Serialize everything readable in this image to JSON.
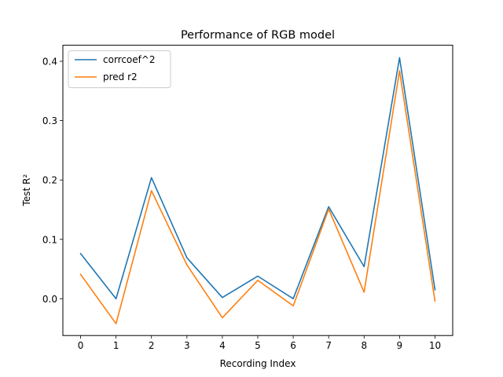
{
  "chart_data": {
    "type": "line",
    "title": "Performance of RGB model",
    "xlabel": "Recording Index",
    "ylabel": "Test R²",
    "x": [
      0,
      1,
      2,
      3,
      4,
      5,
      6,
      7,
      8,
      9,
      10
    ],
    "xticks": [
      "0",
      "1",
      "2",
      "3",
      "4",
      "5",
      "6",
      "7",
      "8",
      "9",
      "10"
    ],
    "yticks": [
      "0.0",
      "0.1",
      "0.2",
      "0.3",
      "0.4"
    ],
    "xlim": [
      -0.5,
      10.5
    ],
    "ylim": [
      -0.062,
      0.427
    ],
    "grid": false,
    "legend_position": "upper-left",
    "series": [
      {
        "name": "corrcoef^2",
        "color": "#1f77b4",
        "values": [
          0.076,
          0.0,
          0.204,
          0.069,
          0.002,
          0.038,
          0.0,
          0.155,
          0.054,
          0.406,
          0.015
        ]
      },
      {
        "name": "pred r2",
        "color": "#ff7f0e",
        "values": [
          0.041,
          -0.042,
          0.182,
          0.057,
          -0.032,
          0.031,
          -0.012,
          0.151,
          0.011,
          0.384,
          -0.004
        ]
      }
    ]
  }
}
